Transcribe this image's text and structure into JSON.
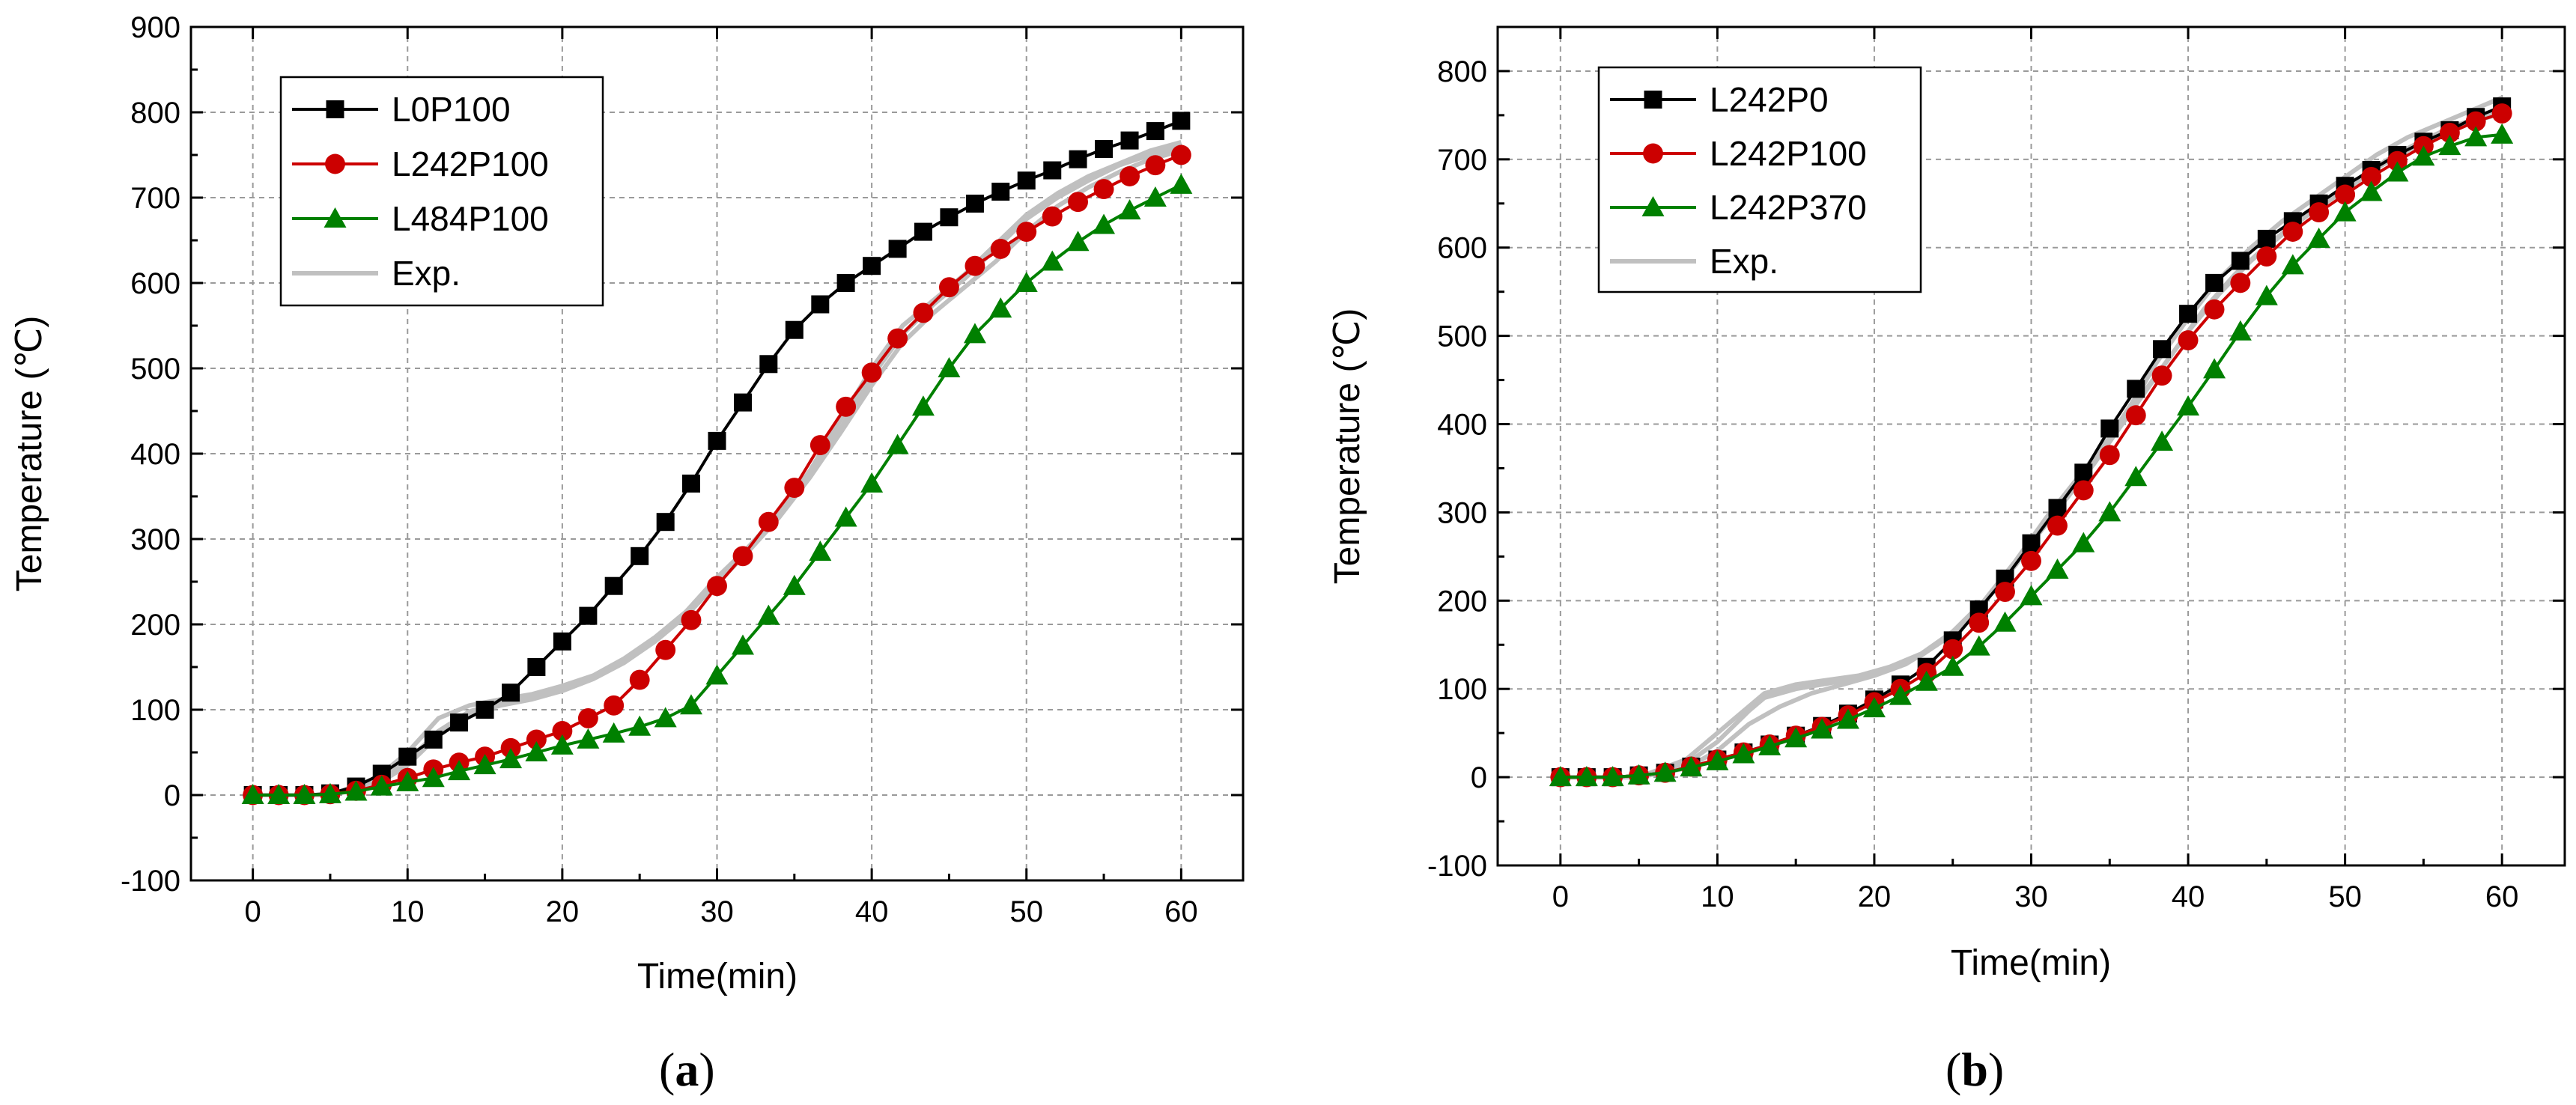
{
  "chart_data": [
    {
      "type": "line",
      "panel_label": "(a)",
      "panel_letter": "a",
      "xlabel": "Time(min)",
      "ylabel": "Temperature (℃)",
      "xlim": [
        -4,
        64
      ],
      "ylim": [
        -100,
        900
      ],
      "xticks": [
        0,
        10,
        20,
        30,
        40,
        50,
        60
      ],
      "yticks": [
        -100,
        0,
        100,
        200,
        300,
        400,
        500,
        600,
        700,
        800,
        900
      ],
      "grid": true,
      "legend_position": "top-left",
      "x": [
        0,
        1.67,
        3.33,
        5,
        6.67,
        8.33,
        10,
        11.67,
        13.33,
        15,
        16.67,
        18.33,
        20,
        21.67,
        23.33,
        25,
        26.67,
        28.33,
        30,
        31.67,
        33.33,
        35,
        36.67,
        38.33,
        40,
        41.67,
        43.33,
        45,
        46.67,
        48.33,
        50,
        51.67,
        53.33,
        55,
        56.67,
        58.33,
        60
      ],
      "series": [
        {
          "name": "L0P100",
          "color": "#000000",
          "marker": "square",
          "values": [
            0,
            0,
            0,
            2,
            10,
            25,
            45,
            65,
            85,
            100,
            120,
            150,
            180,
            210,
            245,
            280,
            320,
            365,
            415,
            460,
            505,
            545,
            575,
            600,
            620,
            640,
            660,
            677,
            693,
            707,
            720,
            732,
            745,
            757,
            767,
            778,
            790
          ]
        },
        {
          "name": "L242P100",
          "color": "#cc0000",
          "marker": "circle",
          "values": [
            0,
            0,
            0,
            1,
            5,
            12,
            20,
            30,
            38,
            45,
            55,
            65,
            75,
            90,
            105,
            135,
            170,
            205,
            245,
            280,
            320,
            360,
            410,
            455,
            495,
            535,
            565,
            595,
            620,
            640,
            660,
            678,
            695,
            710,
            725,
            738,
            750
          ]
        },
        {
          "name": "L484P100",
          "color": "#008000",
          "marker": "triangle",
          "values": [
            0,
            0,
            0,
            1,
            4,
            10,
            15,
            20,
            28,
            35,
            42,
            50,
            58,
            65,
            72,
            80,
            90,
            105,
            140,
            175,
            210,
            245,
            285,
            325,
            365,
            410,
            455,
            500,
            540,
            570,
            600,
            625,
            648,
            668,
            685,
            700,
            715
          ]
        }
      ],
      "experimental": {
        "name": "Exp.",
        "color": "#c0c0c0",
        "curves": [
          [
            [
              0,
              0
            ],
            [
              5,
              0
            ],
            [
              8,
              20
            ],
            [
              10,
              50
            ],
            [
              12,
              90
            ],
            [
              14,
              105
            ],
            [
              16,
              112
            ],
            [
              18,
              118
            ],
            [
              20,
              128
            ],
            [
              22,
              140
            ],
            [
              24,
              160
            ],
            [
              26,
              185
            ],
            [
              28,
              215
            ],
            [
              30,
              255
            ],
            [
              32,
              290
            ],
            [
              34,
              330
            ],
            [
              36,
              380
            ],
            [
              38,
              440
            ],
            [
              40,
              500
            ],
            [
              42,
              550
            ],
            [
              44,
              580
            ],
            [
              46,
              610
            ],
            [
              48,
              645
            ],
            [
              50,
              680
            ],
            [
              52,
              705
            ],
            [
              54,
              725
            ],
            [
              56,
              740
            ],
            [
              58,
              755
            ],
            [
              60,
              765
            ]
          ],
          [
            [
              0,
              0
            ],
            [
              5,
              0
            ],
            [
              8,
              15
            ],
            [
              10,
              40
            ],
            [
              12,
              75
            ],
            [
              14,
              98
            ],
            [
              16,
              108
            ],
            [
              18,
              115
            ],
            [
              20,
              125
            ],
            [
              22,
              138
            ],
            [
              24,
              158
            ],
            [
              26,
              182
            ],
            [
              28,
              213
            ],
            [
              30,
              252
            ],
            [
              32,
              288
            ],
            [
              34,
              328
            ],
            [
              36,
              378
            ],
            [
              38,
              430
            ],
            [
              40,
              490
            ],
            [
              42,
              540
            ],
            [
              44,
              575
            ],
            [
              46,
              605
            ],
            [
              48,
              640
            ],
            [
              50,
              675
            ],
            [
              52,
              700
            ],
            [
              54,
              720
            ],
            [
              56,
              738
            ],
            [
              58,
              750
            ],
            [
              60,
              760
            ]
          ],
          [
            [
              0,
              0
            ],
            [
              5,
              0
            ],
            [
              8,
              12
            ],
            [
              10,
              35
            ],
            [
              12,
              70
            ],
            [
              14,
              95
            ],
            [
              16,
              105
            ],
            [
              18,
              112
            ],
            [
              20,
              122
            ],
            [
              22,
              136
            ],
            [
              24,
              155
            ],
            [
              26,
              180
            ],
            [
              28,
              210
            ],
            [
              30,
              248
            ],
            [
              32,
              285
            ],
            [
              34,
              325
            ],
            [
              36,
              372
            ],
            [
              38,
              425
            ],
            [
              40,
              480
            ],
            [
              42,
              530
            ],
            [
              44,
              565
            ],
            [
              46,
              595
            ],
            [
              48,
              625
            ],
            [
              50,
              660
            ],
            [
              52,
              690
            ],
            [
              54,
              712
            ],
            [
              56,
              730
            ],
            [
              58,
              745
            ],
            [
              60,
              755
            ]
          ]
        ]
      }
    },
    {
      "type": "line",
      "panel_label": "(b)",
      "panel_letter": "b",
      "xlabel": "Time(min)",
      "ylabel": "Temperature (℃)",
      "xlim": [
        -4,
        64
      ],
      "ylim": [
        -100,
        850
      ],
      "xticks": [
        0,
        10,
        20,
        30,
        40,
        50,
        60
      ],
      "yticks": [
        -100,
        0,
        100,
        200,
        300,
        400,
        500,
        600,
        700,
        800
      ],
      "grid": true,
      "legend_position": "top-left",
      "x": [
        0,
        1.67,
        3.33,
        5,
        6.67,
        8.33,
        10,
        11.67,
        13.33,
        15,
        16.67,
        18.33,
        20,
        21.67,
        23.33,
        25,
        26.67,
        28.33,
        30,
        31.67,
        33.33,
        35,
        36.67,
        38.33,
        40,
        41.67,
        43.33,
        45,
        46.67,
        48.33,
        50,
        51.67,
        53.33,
        55,
        56.67,
        58.33,
        60
      ],
      "series": [
        {
          "name": "L242P0",
          "color": "#000000",
          "marker": "square",
          "values": [
            0,
            0,
            0,
            2,
            5,
            12,
            20,
            28,
            37,
            47,
            58,
            72,
            88,
            105,
            125,
            155,
            190,
            225,
            265,
            305,
            345,
            395,
            440,
            485,
            525,
            560,
            585,
            610,
            630,
            650,
            670,
            688,
            705,
            720,
            733,
            748,
            760
          ]
        },
        {
          "name": "L242P100",
          "color": "#cc0000",
          "marker": "circle",
          "values": [
            0,
            0,
            0,
            2,
            5,
            12,
            20,
            28,
            37,
            47,
            57,
            70,
            85,
            100,
            118,
            145,
            175,
            210,
            245,
            285,
            325,
            365,
            410,
            455,
            495,
            530,
            560,
            590,
            618,
            640,
            660,
            680,
            698,
            715,
            730,
            743,
            752
          ]
        },
        {
          "name": "L242P370",
          "color": "#008000",
          "marker": "triangle",
          "values": [
            0,
            0,
            0,
            2,
            5,
            11,
            18,
            26,
            35,
            44,
            54,
            65,
            78,
            92,
            108,
            125,
            148,
            175,
            205,
            235,
            265,
            300,
            340,
            380,
            420,
            462,
            505,
            545,
            580,
            610,
            640,
            663,
            685,
            703,
            715,
            725,
            728
          ]
        }
      ],
      "experimental": {
        "name": "Exp.",
        "color": "#c0c0c0",
        "curves": [
          [
            [
              0,
              0
            ],
            [
              5,
              0
            ],
            [
              8,
              20
            ],
            [
              10,
              50
            ],
            [
              12,
              80
            ],
            [
              13,
              95
            ],
            [
              15,
              105
            ],
            [
              17,
              110
            ],
            [
              19,
              115
            ],
            [
              21,
              125
            ],
            [
              23,
              140
            ],
            [
              25,
              165
            ],
            [
              27,
              200
            ],
            [
              29,
              245
            ],
            [
              31,
              295
            ],
            [
              33,
              340
            ],
            [
              35,
              385
            ],
            [
              37,
              440
            ],
            [
              38,
              470
            ],
            [
              40,
              520
            ],
            [
              42,
              565
            ],
            [
              44,
              600
            ],
            [
              46,
              630
            ],
            [
              48,
              655
            ],
            [
              50,
              680
            ],
            [
              52,
              705
            ],
            [
              54,
              725
            ],
            [
              56,
              740
            ],
            [
              58,
              755
            ],
            [
              60,
              770
            ]
          ],
          [
            [
              0,
              0
            ],
            [
              5,
              0
            ],
            [
              8,
              15
            ],
            [
              10,
              40
            ],
            [
              12,
              75
            ],
            [
              13,
              90
            ],
            [
              15,
              100
            ],
            [
              17,
              106
            ],
            [
              19,
              112
            ],
            [
              21,
              122
            ],
            [
              23,
              138
            ],
            [
              25,
              162
            ],
            [
              27,
              198
            ],
            [
              29,
              240
            ],
            [
              31,
              290
            ],
            [
              33,
              335
            ],
            [
              35,
              380
            ],
            [
              37,
              432
            ],
            [
              39,
              480
            ],
            [
              41,
              530
            ],
            [
              43,
              570
            ],
            [
              45,
              602
            ],
            [
              47,
              630
            ],
            [
              49,
              655
            ],
            [
              51,
              680
            ],
            [
              53,
              703
            ],
            [
              55,
              722
            ],
            [
              57,
              738
            ],
            [
              59,
              750
            ],
            [
              60,
              758
            ]
          ],
          [
            [
              0,
              0
            ],
            [
              5,
              0
            ],
            [
              8,
              10
            ],
            [
              10,
              30
            ],
            [
              12,
              60
            ],
            [
              14,
              80
            ],
            [
              16,
              95
            ],
            [
              18,
              105
            ],
            [
              20,
              115
            ],
            [
              22,
              128
            ],
            [
              24,
              150
            ],
            [
              26,
              180
            ],
            [
              28,
              220
            ],
            [
              30,
              265
            ],
            [
              32,
              310
            ],
            [
              34,
              355
            ],
            [
              36,
              405
            ],
            [
              38,
              455
            ],
            [
              40,
              505
            ],
            [
              42,
              548
            ],
            [
              44,
              585
            ],
            [
              46,
              615
            ],
            [
              48,
              642
            ],
            [
              50,
              665
            ],
            [
              52,
              690
            ],
            [
              54,
              710
            ],
            [
              56,
              728
            ],
            [
              58,
              742
            ],
            [
              60,
              752
            ]
          ]
        ]
      }
    }
  ]
}
